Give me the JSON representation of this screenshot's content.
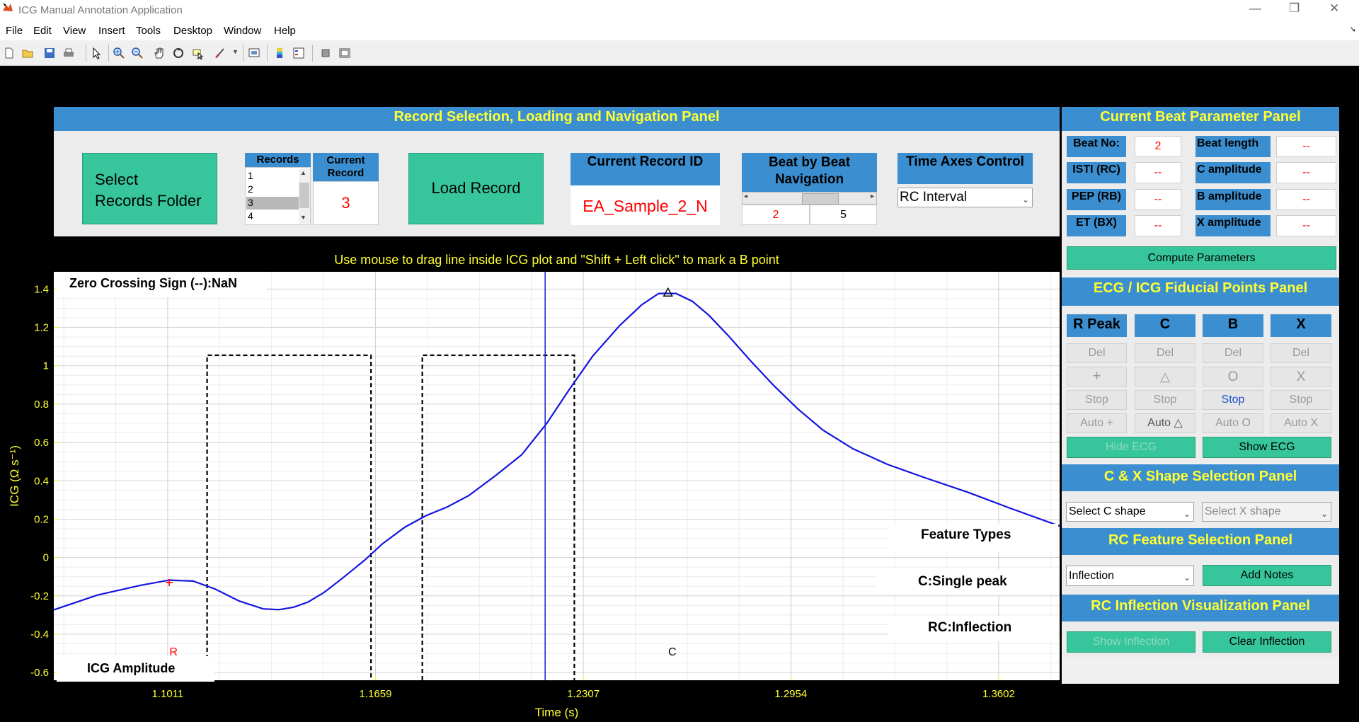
{
  "app": {
    "title": "ICG Manual Annotation Application"
  },
  "window_controls": {
    "minimize": "—",
    "restore": "❐",
    "close": "✕"
  },
  "menu": [
    "File",
    "Edit",
    "View",
    "Insert",
    "Tools",
    "Desktop",
    "Window",
    "Help"
  ],
  "toolbar_icons": [
    "new-file-icon",
    "open-folder-icon",
    "save-icon",
    "print-icon",
    "pointer-icon",
    "zoom-in-icon",
    "zoom-out-icon",
    "pan-icon",
    "rotate-icon",
    "data-cursor-icon",
    "brush-icon",
    "link-plot-icon",
    "colorbar-icon",
    "legend-icon",
    "hide-tools-icon",
    "dock-icon"
  ],
  "record_panel": {
    "title": "Record Selection, Loading and Navigation Panel",
    "select_folder": "Select\nRecords Folder",
    "records_label": "Records",
    "records": [
      "1",
      "2",
      "3",
      "4"
    ],
    "selected_record": "3",
    "current_record_label": "Current\nRecord",
    "current_record": "3",
    "load_record": "Load Record",
    "record_id_label": "Current Record ID",
    "record_id": "EA_Sample_2_N",
    "beat_nav_label": "Beat by Beat\nNavigation",
    "beat_current": "2",
    "beat_total": "5",
    "time_axes_label": "Time Axes Control",
    "time_axes_value": "RC Interval"
  },
  "beat_param_panel": {
    "title": "Current Beat Parameter Panel",
    "rows": [
      {
        "l1": "Beat No:",
        "v1": "2",
        "l2": "Beat length",
        "v2": "--"
      },
      {
        "l1": "ISTI (RC)",
        "v1": "--",
        "l2": "C amplitude",
        "v2": "--"
      },
      {
        "l1": "PEP (RB)",
        "v1": "--",
        "l2": "B amplitude",
        "v2": "--"
      },
      {
        "l1": "ET (BX)",
        "v1": "--",
        "l2": "X amplitude",
        "v2": "--"
      }
    ],
    "compute": "Compute Parameters"
  },
  "fiducial_panel": {
    "title": "ECG / ICG Fiducial Points Panel",
    "columns": [
      {
        "name": "R Peak",
        "del": "Del",
        "sym": "+",
        "stop": "Stop",
        "auto": "Auto +"
      },
      {
        "name": "C",
        "del": "Del",
        "sym": "△",
        "stop": "Stop",
        "auto": "Auto △"
      },
      {
        "name": "B",
        "del": "Del",
        "sym": "O",
        "stop": "Stop",
        "auto": "Auto O"
      },
      {
        "name": "X",
        "del": "Del",
        "sym": "X",
        "stop": "Stop",
        "auto": "Auto X"
      }
    ],
    "hide_ecg": "Hide ECG",
    "show_ecg": "Show ECG"
  },
  "shape_panel": {
    "title": "C & X Shape Selection Panel",
    "c_shape": "Select C shape",
    "x_shape": "Select X shape"
  },
  "rc_feature_panel": {
    "title": "RC Feature Selection Panel",
    "feature": "Inflection",
    "add_notes": "Add Notes"
  },
  "rc_vis_panel": {
    "title": "RC Inflection Visualization Panel",
    "show": "Show Inflection",
    "clear": "Clear Inflection"
  },
  "plot": {
    "instruction": "Use mouse to drag line inside ICG plot and \"Shift + Left click\" to mark a B point",
    "zero_crossing": "Zero Crossing Sign (--):NaN",
    "legend": "ICG Amplitude",
    "feature_types": "Feature Types",
    "c_type": "C:Single peak",
    "rc_type": "RC:Inflection",
    "xlabel": "Time (s)",
    "ylabel": "ICG (Ω s⁻¹)",
    "r_label": "R",
    "c_label": "C"
  },
  "chart_data": {
    "type": "line",
    "title": "",
    "xlabel": "Time (s)",
    "ylabel": "ICG (Ω s⁻¹)",
    "xlim": [
      1.0656,
      1.3792
    ],
    "ylim": [
      -0.64,
      1.49
    ],
    "xticks": [
      1.1011,
      1.1659,
      1.2307,
      1.2954,
      1.3602
    ],
    "xtick_labels": [
      "1.1011",
      "1.1659",
      "1.2307",
      "1.2954",
      "1.3602"
    ],
    "yticks": [
      -0.6,
      -0.4,
      -0.2,
      0,
      0.2,
      0.4,
      0.6,
      0.8,
      1,
      1.2,
      1.4
    ],
    "ytick_labels": [
      "-0.6",
      "-0.4",
      "-0.2",
      "0",
      "0.2",
      "0.4",
      "0.6",
      "0.8",
      "1",
      "1.2",
      "1.4"
    ],
    "series": [
      {
        "name": "ICG Amplitude",
        "x": [
          1.0656,
          1.0792,
          1.0926,
          1.1016,
          1.109,
          1.1159,
          1.1234,
          1.1309,
          1.1358,
          1.1404,
          1.1449,
          1.1499,
          1.1555,
          1.1625,
          1.1681,
          1.1751,
          1.1816,
          1.1883,
          1.195,
          1.2033,
          1.2115,
          1.2193,
          1.2262,
          1.2336,
          1.242,
          1.2489,
          1.2542,
          1.2596,
          1.2647,
          1.2698,
          1.2758,
          1.283,
          1.2902,
          1.2977,
          1.3055,
          1.3147,
          1.3255,
          1.3376,
          1.3505,
          1.3635,
          1.3792
        ],
        "y": [
          -0.273,
          -0.196,
          -0.145,
          -0.118,
          -0.123,
          -0.164,
          -0.227,
          -0.268,
          -0.272,
          -0.259,
          -0.232,
          -0.182,
          -0.109,
          -0.014,
          0.072,
          0.159,
          0.218,
          0.264,
          0.323,
          0.427,
          0.536,
          0.7,
          0.873,
          1.05,
          1.209,
          1.318,
          1.377,
          1.377,
          1.336,
          1.264,
          1.159,
          1.023,
          0.895,
          0.773,
          0.664,
          0.568,
          0.486,
          0.414,
          0.341,
          0.259,
          0.164
        ]
      }
    ],
    "markers": [
      {
        "label": "R",
        "x": 1.1016,
        "y": -0.13,
        "symbol": "+",
        "color": "#ff0000"
      },
      {
        "label": "C",
        "x": 1.2571,
        "y": 1.382,
        "symbol": "triangle",
        "color": "#000000"
      }
    ],
    "cursor_line_x": 1.2188,
    "windows": [
      {
        "x0": 1.1134,
        "x1": 1.1645,
        "y_top": 1.055
      },
      {
        "x0": 1.1805,
        "x1": 1.2279,
        "y_top": 1.055
      }
    ]
  }
}
